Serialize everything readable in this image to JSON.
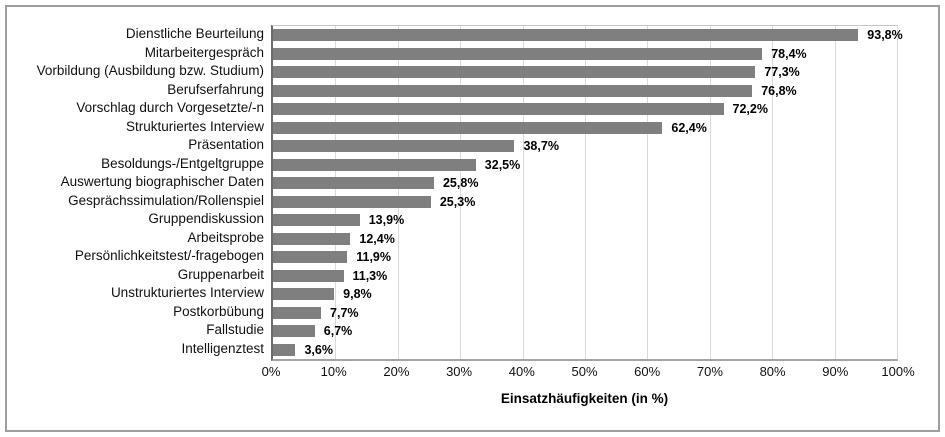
{
  "frame": {
    "border_color": "#9e9e9e",
    "background": "#ffffff"
  },
  "chart_data": {
    "type": "bar",
    "orientation": "horizontal",
    "title": "",
    "xlabel": "Einsatzhäufigkeiten (in %)",
    "ylabel": "",
    "xlim": [
      0,
      100
    ],
    "grid": "vertical",
    "legend": "none",
    "bar_color": "#7f7f7f",
    "gridline_color": "#d9d9d9",
    "categories": [
      "Dienstliche Beurteilung",
      "Mitarbeitergespräch",
      "Vorbildung (Ausbildung bzw. Studium)",
      "Berufserfahrung",
      "Vorschlag durch Vorgesetzte/-n",
      "Strukturiertes Interview",
      "Präsentation",
      "Besoldungs-/Entgeltgruppe",
      "Auswertung biographischer Daten",
      "Gesprächssimulation/Rollenspiel",
      "Gruppendiskussion",
      "Arbeitsprobe",
      "Persönlichkeitstest/-fragebogen",
      "Gruppenarbeit",
      "Unstrukturiertes Interview",
      "Postkorbübung",
      "Fallstudie",
      "Intelligenztest"
    ],
    "values": [
      93.8,
      78.4,
      77.3,
      76.8,
      72.2,
      62.4,
      38.7,
      32.5,
      25.8,
      25.3,
      13.9,
      12.4,
      11.9,
      11.3,
      9.8,
      7.7,
      6.7,
      3.6
    ],
    "value_labels": [
      "93,8%",
      "78,4%",
      "77,3%",
      "76,8%",
      "72,2%",
      "62,4%",
      "38,7%",
      "32,5%",
      "25,8%",
      "25,3%",
      "13,9%",
      "12,4%",
      "11,9%",
      "11,3%",
      "9,8%",
      "7,7%",
      "6,7%",
      "3,6%"
    ],
    "x_ticks": [
      {
        "value": 0,
        "label": "0%"
      },
      {
        "value": 10,
        "label": "10%"
      },
      {
        "value": 20,
        "label": "20%"
      },
      {
        "value": 30,
        "label": "30%"
      },
      {
        "value": 40,
        "label": "40%"
      },
      {
        "value": 50,
        "label": "50%"
      },
      {
        "value": 60,
        "label": "60%"
      },
      {
        "value": 70,
        "label": "70%"
      },
      {
        "value": 80,
        "label": "80%"
      },
      {
        "value": 90,
        "label": "90%"
      },
      {
        "value": 100,
        "label": "100%"
      }
    ]
  }
}
